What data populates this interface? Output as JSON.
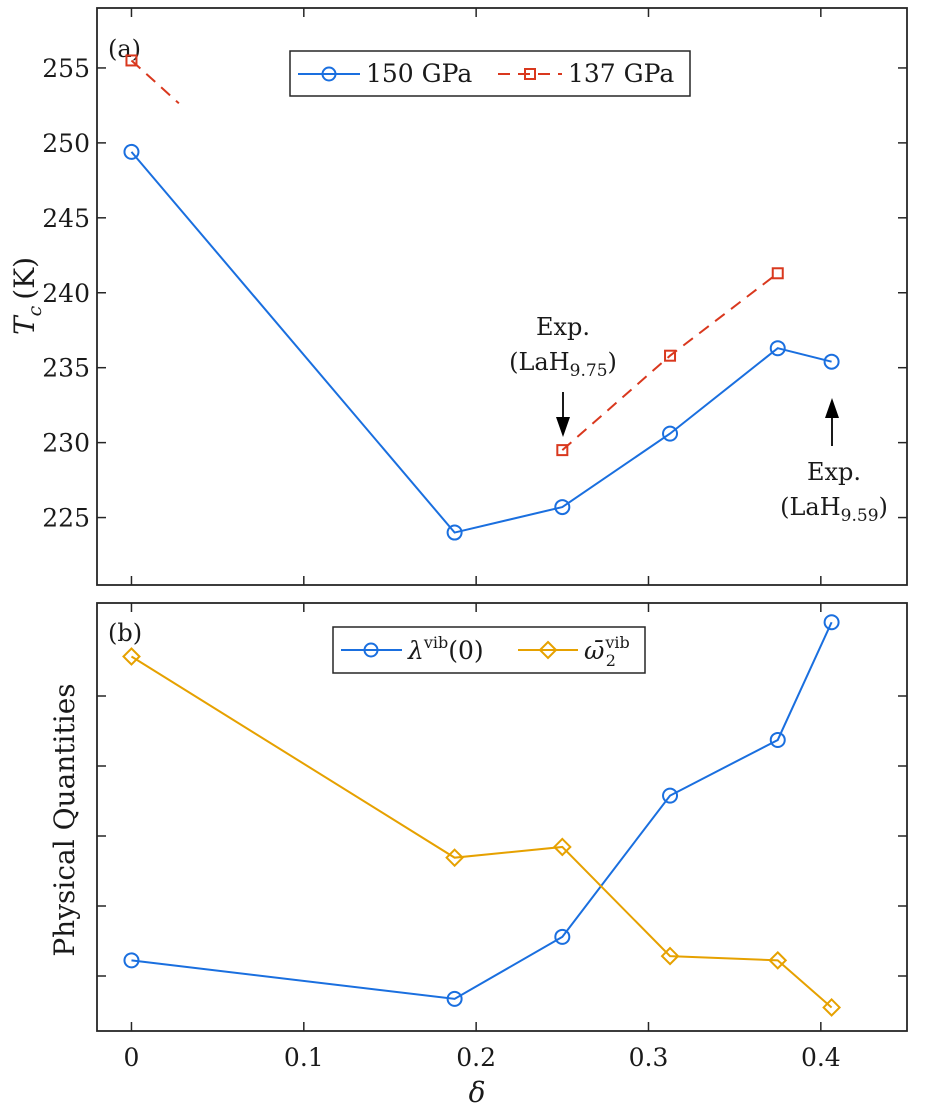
{
  "chart_data": [
    {
      "panel": "(a)",
      "type": "line",
      "ylabel": "T_c (K)",
      "ylabel_symbol": "T",
      "ylabel_sub": "c",
      "ylabel_unit": "(K)",
      "xlim": [
        -0.02,
        0.45
      ],
      "ylim": [
        220.5,
        259
      ],
      "yticks": [
        225,
        230,
        235,
        240,
        245,
        250,
        255
      ],
      "series": [
        {
          "name": "150 GPa",
          "color": "#1a6fdf",
          "marker": "circle",
          "dash": "solid",
          "x": [
            0,
            0.1875,
            0.25,
            0.3125,
            0.375,
            0.40625
          ],
          "values": [
            249.4,
            224.0,
            225.7,
            230.6,
            236.3,
            235.4
          ]
        },
        {
          "name": "137 GPa",
          "color": "#d9381e",
          "marker": "square",
          "dash": "dashed",
          "x": [
            0,
            0.25,
            0.3125,
            0.375
          ],
          "values": [
            255.5,
            229.5,
            235.8,
            241.3
          ],
          "broken_after_x": 0.0275
        }
      ],
      "legend": {
        "placement": "top-center",
        "entries": [
          "150 GPa",
          "137 GPa"
        ]
      },
      "annotations": [
        {
          "line1": "Exp.",
          "line2_main": "(LaH",
          "line2_sub": "9.75",
          "line2_end": ")",
          "arrow": "down",
          "x": 0.25
        },
        {
          "line1": "Exp.",
          "line2_main": "(LaH",
          "line2_sub": "9.59",
          "line2_end": ")",
          "arrow": "up",
          "x": 0.40625
        }
      ]
    },
    {
      "panel": "(b)",
      "type": "line",
      "ylabel": "Physical Quantities",
      "xlabel": "δ",
      "xlim": [
        -0.02,
        0.45
      ],
      "ylim": [
        0,
        1
      ],
      "xticks": [
        0,
        0.1,
        0.2,
        0.3,
        0.4
      ],
      "xtick_labels": [
        "0",
        "0.1",
        "0.2",
        "0.3",
        "0.4"
      ],
      "series": [
        {
          "name": "λ^vib(0)",
          "color": "#1a6fdf",
          "marker": "circle",
          "x": [
            0,
            0.1875,
            0.25,
            0.3125,
            0.375,
            0.40625
          ],
          "values": [
            0.165,
            0.075,
            0.22,
            0.55,
            0.68,
            0.955
          ]
        },
        {
          "name": "ω̄₂^vib",
          "color": "#e6a100",
          "marker": "diamond",
          "x": [
            0,
            0.1875,
            0.25,
            0.3125,
            0.375,
            0.40625
          ],
          "values": [
            0.875,
            0.405,
            0.43,
            0.175,
            0.165,
            0.055
          ]
        }
      ],
      "legend": {
        "placement": "top-center",
        "entries": [
          {
            "main": "λ",
            "sup": "vib",
            "tail": "(0)"
          },
          {
            "main": "ω̄",
            "sub": "2",
            "sup": "vib"
          }
        ]
      }
    }
  ]
}
